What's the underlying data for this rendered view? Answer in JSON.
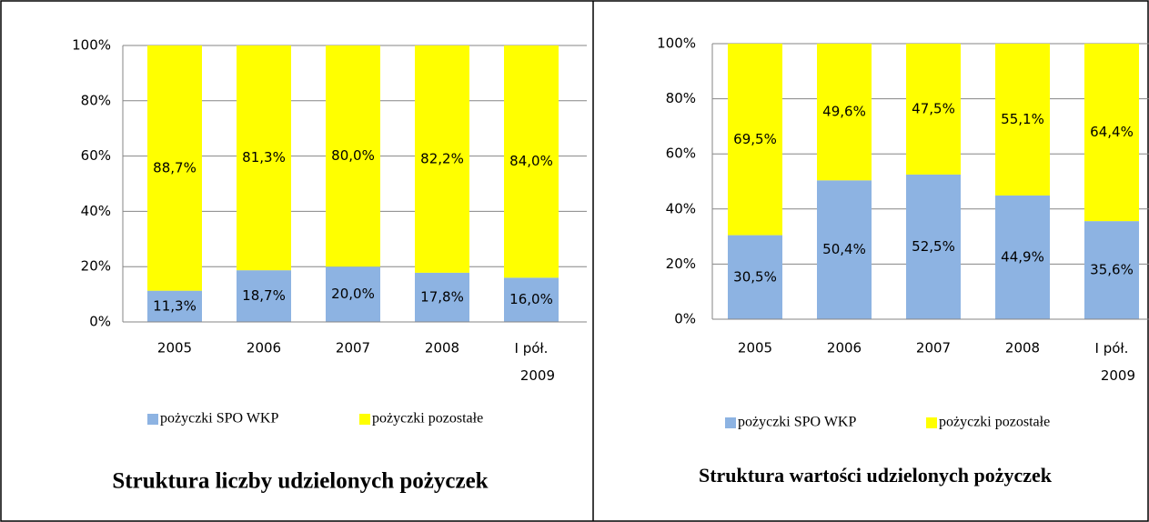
{
  "chart_data": [
    {
      "type": "stacked_bar",
      "title": "Struktura liczby udzielonych pożyczek",
      "categories": [
        "2005",
        "2006",
        "2007",
        "2008",
        "I pół.\n2009"
      ],
      "series": [
        {
          "name": "pożyczki SPO WKP",
          "color": "#8db3e2",
          "values": [
            11.3,
            18.7,
            20.0,
            17.8,
            16.0
          ],
          "value_labels": [
            "11,3%",
            "18,7%",
            "20,0%",
            "17,8%",
            "16,0%"
          ]
        },
        {
          "name": "pożyczki pozostałe",
          "color": "#ffff00",
          "values": [
            88.7,
            81.3,
            80.0,
            82.2,
            84.0
          ],
          "value_labels": [
            "88,7%",
            "81,3%",
            "80,0%",
            "82,2%",
            "84,0%"
          ]
        }
      ],
      "ylim": [
        0,
        100
      ],
      "yticks": [
        {
          "value": 0,
          "label": "0%"
        },
        {
          "value": 20,
          "label": "20%"
        },
        {
          "value": 40,
          "label": "40%"
        },
        {
          "value": 60,
          "label": "60%"
        },
        {
          "value": 80,
          "label": "80%"
        },
        {
          "value": 100,
          "label": "100%"
        }
      ],
      "grid": true,
      "legend": "bottom"
    },
    {
      "type": "stacked_bar",
      "title": "Struktura wartości udzielonych pożyczek",
      "categories": [
        "2005",
        "2006",
        "2007",
        "2008",
        "I pół.\n2009"
      ],
      "series": [
        {
          "name": "pożyczki SPO WKP",
          "color": "#8db3e2",
          "values": [
            30.5,
            50.4,
            52.5,
            44.9,
            35.6
          ],
          "value_labels": [
            "30,5%",
            "50,4%",
            "52,5%",
            "44,9%",
            "35,6%"
          ]
        },
        {
          "name": "pożyczki pozostałe",
          "color": "#ffff00",
          "values": [
            69.5,
            49.6,
            47.5,
            55.1,
            64.4
          ],
          "value_labels": [
            "69,5%",
            "49,6%",
            "47,5%",
            "55,1%",
            "64,4%"
          ]
        }
      ],
      "ylim": [
        0,
        100
      ],
      "yticks": [
        {
          "value": 0,
          "label": "0%"
        },
        {
          "value": 20,
          "label": "20%"
        },
        {
          "value": 40,
          "label": "40%"
        },
        {
          "value": 60,
          "label": "60%"
        },
        {
          "value": 80,
          "label": "80%"
        },
        {
          "value": 100,
          "label": "100%"
        }
      ],
      "grid": true,
      "legend": "bottom"
    }
  ]
}
